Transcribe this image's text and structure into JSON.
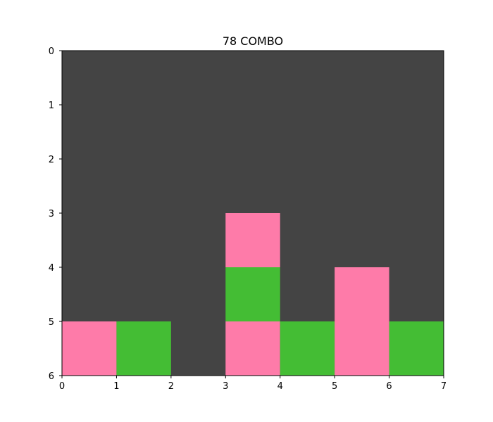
{
  "title": "78 COMBO",
  "board": {
    "columns": 7,
    "rows": 6,
    "x_ticks": [
      "0",
      "1",
      "2",
      "3",
      "4",
      "5",
      "6",
      "7"
    ],
    "y_ticks": [
      "0",
      "1",
      "2",
      "3",
      "4",
      "5",
      "6"
    ],
    "background_color": "#444444",
    "colors": {
      "pink": "#fe7ba9",
      "green": "#44bd34"
    },
    "cells": [
      {
        "col": 0,
        "row": 5,
        "color": "pink"
      },
      {
        "col": 1,
        "row": 5,
        "color": "green"
      },
      {
        "col": 3,
        "row": 3,
        "color": "pink"
      },
      {
        "col": 3,
        "row": 4,
        "color": "green"
      },
      {
        "col": 3,
        "row": 5,
        "color": "pink"
      },
      {
        "col": 4,
        "row": 5,
        "color": "green"
      },
      {
        "col": 5,
        "row": 4,
        "color": "pink"
      },
      {
        "col": 5,
        "row": 5,
        "color": "pink"
      },
      {
        "col": 6,
        "row": 5,
        "color": "green"
      }
    ]
  }
}
